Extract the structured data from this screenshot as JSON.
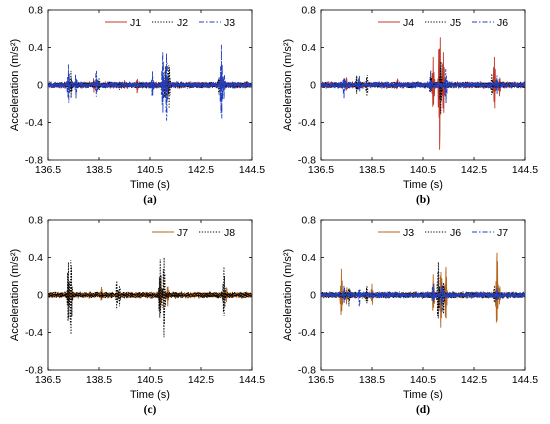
{
  "chart_data": [
    {
      "type": "line",
      "panel_label": "(a)",
      "xlabel": "Time (s)",
      "ylabel": "Acceleration (m/s²)",
      "xlim": [
        136.5,
        144.5
      ],
      "ylim": [
        -0.8,
        0.8
      ],
      "x_ticks": [
        "136.5",
        "138.5",
        "140.5",
        "142.5",
        "144.5"
      ],
      "y_ticks": [
        "-0.8",
        "-0.4",
        "0",
        "0.4",
        "0.8"
      ],
      "legend_position": "top-right",
      "series": [
        {
          "name": "J1",
          "color": "#c0392b",
          "dash": "solid",
          "values": [
            [
              136.5,
              0
            ],
            [
              137.3,
              0.05
            ],
            [
              138.3,
              -0.08
            ],
            [
              139.5,
              0.05
            ],
            [
              140.0,
              -0.08
            ],
            [
              141.0,
              0.12
            ],
            [
              141.2,
              -0.15
            ],
            [
              143.3,
              0.1
            ],
            [
              144.5,
              0
            ]
          ]
        },
        {
          "name": "J2",
          "color": "#000000",
          "dash": "dotted",
          "values": [
            [
              136.5,
              0
            ],
            [
              137.4,
              0.15
            ],
            [
              138.5,
              0.08
            ],
            [
              139.3,
              -0.05
            ],
            [
              141.1,
              0.2
            ],
            [
              141.25,
              -0.25
            ],
            [
              143.2,
              -0.1
            ],
            [
              144.5,
              0
            ]
          ]
        },
        {
          "name": "J3",
          "color": "#1f3fbf",
          "dash": "dashdot",
          "values": [
            [
              136.5,
              0
            ],
            [
              137.3,
              0.22
            ],
            [
              137.6,
              -0.15
            ],
            [
              138.4,
              0.15
            ],
            [
              140.6,
              0.15
            ],
            [
              141.0,
              0.35
            ],
            [
              141.15,
              -0.38
            ],
            [
              143.3,
              0.43
            ],
            [
              143.4,
              -0.15
            ],
            [
              144.5,
              0
            ]
          ]
        }
      ]
    },
    {
      "type": "line",
      "panel_label": "(b)",
      "xlabel": "Time (s)",
      "ylabel": "Acceleration (m/s²)",
      "xlim": [
        136.5,
        144.5
      ],
      "ylim": [
        -0.8,
        0.8
      ],
      "x_ticks": [
        "136.5",
        "138.5",
        "140.5",
        "142.5",
        "144.5"
      ],
      "y_ticks": [
        "-0.8",
        "-0.4",
        "0",
        "0.4",
        "0.8"
      ],
      "legend_position": "top-right",
      "series": [
        {
          "name": "J4",
          "color": "#c0392b",
          "dash": "solid",
          "values": [
            [
              136.5,
              0
            ],
            [
              137.5,
              0.08
            ],
            [
              139.5,
              0.06
            ],
            [
              140.9,
              0.3
            ],
            [
              141.15,
              -0.69
            ],
            [
              141.3,
              0.35
            ],
            [
              143.3,
              0.3
            ],
            [
              143.5,
              -0.12
            ],
            [
              144.5,
              0
            ]
          ]
        },
        {
          "name": "J5",
          "color": "#000000",
          "dash": "dotted",
          "values": [
            [
              136.5,
              0
            ],
            [
              137.9,
              0.1
            ],
            [
              138.3,
              -0.12
            ],
            [
              140.8,
              0.15
            ],
            [
              141.2,
              -0.3
            ],
            [
              143.2,
              0.12
            ],
            [
              144.5,
              0
            ]
          ]
        },
        {
          "name": "J6",
          "color": "#1f3fbf",
          "dash": "dashdot",
          "values": [
            [
              136.5,
              0
            ],
            [
              137.4,
              -0.15
            ],
            [
              138.0,
              0.1
            ],
            [
              140.8,
              0.12
            ],
            [
              141.4,
              -0.2
            ],
            [
              143.4,
              0.1
            ],
            [
              144.5,
              0
            ]
          ]
        }
      ]
    },
    {
      "type": "line",
      "panel_label": "(c)",
      "xlabel": "Time (s)",
      "ylabel": "Acceleration (m/s²)",
      "xlim": [
        136.5,
        144.5
      ],
      "ylim": [
        -0.8,
        0.8
      ],
      "x_ticks": [
        "136.5",
        "138.5",
        "140.5",
        "142.5",
        "144.5"
      ],
      "y_ticks": [
        "-0.8",
        "-0.4",
        "0",
        "0.4",
        "0.8"
      ],
      "legend_position": "top-right",
      "series": [
        {
          "name": "J7",
          "color": "#b5651d",
          "dash": "solid",
          "values": [
            [
              136.5,
              0
            ],
            [
              137.3,
              0.12
            ],
            [
              138.6,
              0.08
            ],
            [
              140.9,
              0.18
            ],
            [
              141.2,
              -0.12
            ],
            [
              143.5,
              0.08
            ],
            [
              144.5,
              0
            ]
          ]
        },
        {
          "name": "J8",
          "color": "#000000",
          "dash": "dotted",
          "values": [
            [
              136.5,
              0
            ],
            [
              137.3,
              0.35
            ],
            [
              137.4,
              -0.42
            ],
            [
              139.2,
              0.15
            ],
            [
              139.3,
              -0.12
            ],
            [
              140.9,
              0.38
            ],
            [
              141.05,
              -0.45
            ],
            [
              143.4,
              0.3
            ],
            [
              144.5,
              0
            ]
          ]
        }
      ]
    },
    {
      "type": "line",
      "panel_label": "(d)",
      "xlabel": "Time (s)",
      "ylabel": "Acceleration (m/s²)",
      "xlim": [
        136.5,
        144.5
      ],
      "ylim": [
        -0.8,
        0.8
      ],
      "x_ticks": [
        "136.5",
        "138.5",
        "140.5",
        "142.5",
        "144.5"
      ],
      "y_ticks": [
        "-0.8",
        "-0.4",
        "0",
        "0.4",
        "0.8"
      ],
      "legend_position": "top-right",
      "series": [
        {
          "name": "J3",
          "color": "#b5651d",
          "dash": "solid",
          "values": [
            [
              136.5,
              0
            ],
            [
              137.3,
              0.28
            ],
            [
              137.5,
              -0.1
            ],
            [
              138.5,
              0.12
            ],
            [
              140.9,
              0.22
            ],
            [
              141.2,
              -0.35
            ],
            [
              141.4,
              0.3
            ],
            [
              143.4,
              0.45
            ],
            [
              143.5,
              -0.1
            ],
            [
              144.5,
              0
            ]
          ]
        },
        {
          "name": "J6",
          "color": "#000000",
          "dash": "dotted",
          "values": [
            [
              136.5,
              0
            ],
            [
              137.6,
              -0.12
            ],
            [
              138.3,
              0.1
            ],
            [
              141.1,
              0.35
            ],
            [
              141.3,
              -0.2
            ],
            [
              143.3,
              0.1
            ],
            [
              144.5,
              0
            ]
          ]
        },
        {
          "name": "J7",
          "color": "#1f3fbf",
          "dash": "dashdot",
          "values": [
            [
              136.5,
              0
            ],
            [
              137.4,
              0.1
            ],
            [
              138.0,
              -0.12
            ],
            [
              140.9,
              0.12
            ],
            [
              141.25,
              -0.18
            ],
            [
              143.4,
              0.08
            ],
            [
              144.5,
              0
            ]
          ]
        }
      ]
    }
  ]
}
